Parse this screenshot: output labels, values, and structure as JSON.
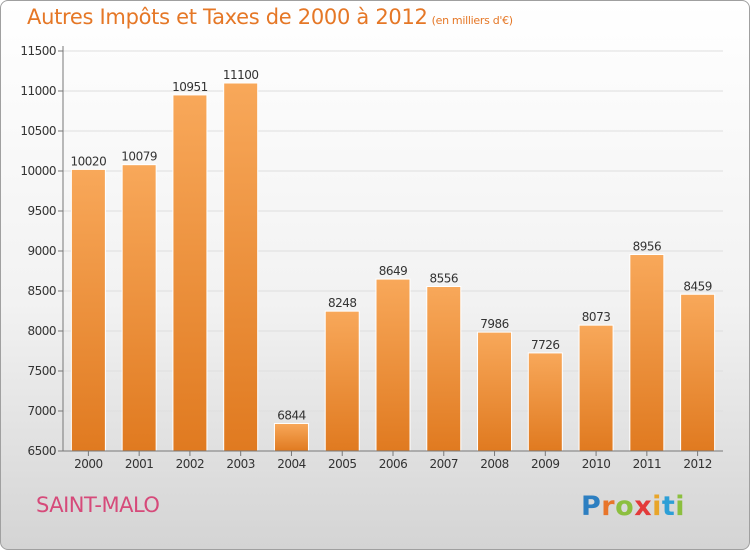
{
  "header": {
    "title": "Autres Impôts et Taxes de 2000 à 2012",
    "unit": "(en milliers d'€)"
  },
  "footer": {
    "city": "SAINT-MALO",
    "logo_letters": [
      {
        "ch": "P",
        "color": "#2d7fc1"
      },
      {
        "ch": "r",
        "color": "#e8752a"
      },
      {
        "ch": "o",
        "color": "#8cbf3f"
      },
      {
        "ch": "x",
        "color": "#e33b3b"
      },
      {
        "ch": "i",
        "color": "#e8a52a"
      },
      {
        "ch": "t",
        "color": "#2d9fd6"
      },
      {
        "ch": "i",
        "color": "#8cbf3f"
      }
    ]
  },
  "colors": {
    "bar_top": "#f8a85a",
    "bar_bottom": "#e07a20",
    "title": "#e57726",
    "city": "#d64a7a"
  },
  "chart_data": {
    "type": "bar",
    "categories": [
      "2000",
      "2001",
      "2002",
      "2003",
      "2004",
      "2005",
      "2006",
      "2007",
      "2008",
      "2009",
      "2010",
      "2011",
      "2012"
    ],
    "values": [
      10020,
      10079,
      10951,
      11100,
      6844,
      8248,
      8649,
      8556,
      7986,
      7726,
      8073,
      8956,
      8459
    ],
    "title": "Autres Impôts et Taxes de 2000 à 2012",
    "subtitle": "(en milliers d'€)",
    "ylim": [
      6500,
      11500
    ],
    "yticks": [
      6500,
      7000,
      7500,
      8000,
      8500,
      9000,
      9500,
      10000,
      10500,
      11000,
      11500
    ],
    "grid": true,
    "data_labels": true
  }
}
